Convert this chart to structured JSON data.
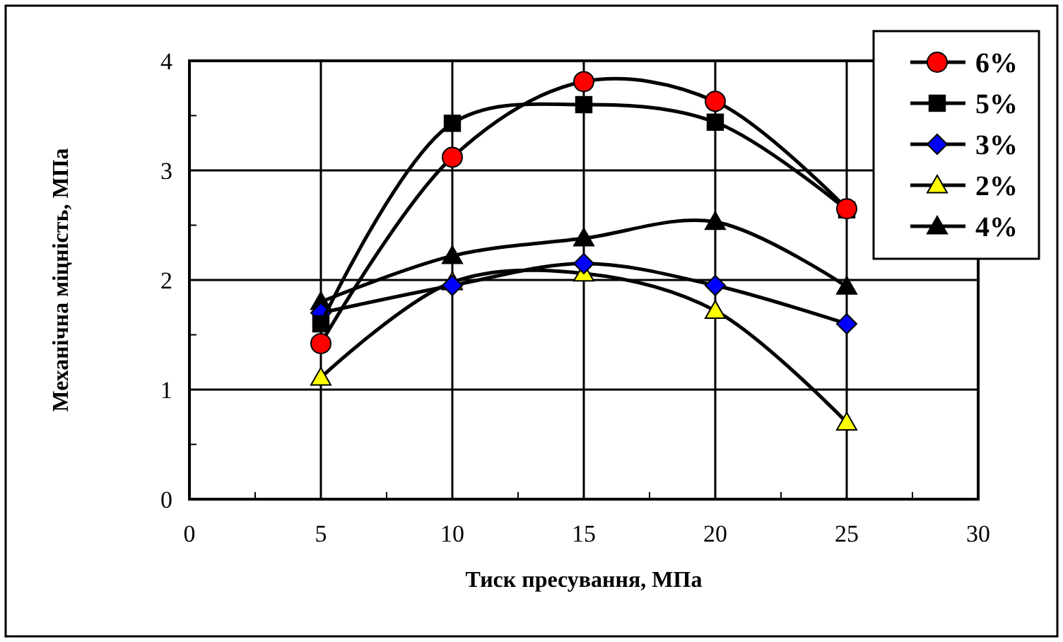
{
  "chart_data": {
    "type": "line",
    "xlabel": "Тиск пресування, МПа",
    "ylabel": "Механічна міцність, МПа",
    "x": [
      5,
      10,
      15,
      20,
      25
    ],
    "xlim": [
      0,
      30
    ],
    "xticks": [
      0,
      {
        "value": 2.5,
        "label": null
      },
      5,
      {
        "value": 7.5,
        "label": null
      },
      10,
      {
        "value": 12.5,
        "label": null
      },
      15,
      {
        "value": 17.5,
        "label": null
      },
      20,
      {
        "value": 22.5,
        "label": null
      },
      25,
      {
        "value": 27.5,
        "label": null
      },
      30
    ],
    "ylim": [
      0,
      4
    ],
    "yticks": [
      0,
      {
        "value": 0.5,
        "label": null
      },
      1,
      {
        "value": 1.5,
        "label": null
      },
      2,
      {
        "value": 2.5,
        "label": null
      },
      3,
      {
        "value": 3.5,
        "label": null
      },
      4
    ],
    "grid": true,
    "legend": "top right",
    "line_style": "solid",
    "series": [
      {
        "name": "6%",
        "color": "#ff0000",
        "marker": "circle",
        "values": [
          1.42,
          3.12,
          3.81,
          3.63,
          2.65
        ]
      },
      {
        "name": "5%",
        "color": "#000000",
        "marker": "square",
        "values": [
          1.6,
          3.43,
          3.6,
          3.44,
          2.64
        ]
      },
      {
        "name": "3%",
        "color": "#0000ff",
        "marker": "diamond",
        "values": [
          1.7,
          1.95,
          2.15,
          1.95,
          1.6
        ]
      },
      {
        "name": "2%",
        "color": "#ffff00",
        "marker": "triangle",
        "values": [
          1.11,
          1.98,
          2.06,
          1.72,
          0.7
        ]
      },
      {
        "name": "4%",
        "color": "#000000",
        "marker": "triangle",
        "values": [
          1.8,
          2.22,
          2.38,
          2.53,
          1.94
        ]
      }
    ]
  }
}
